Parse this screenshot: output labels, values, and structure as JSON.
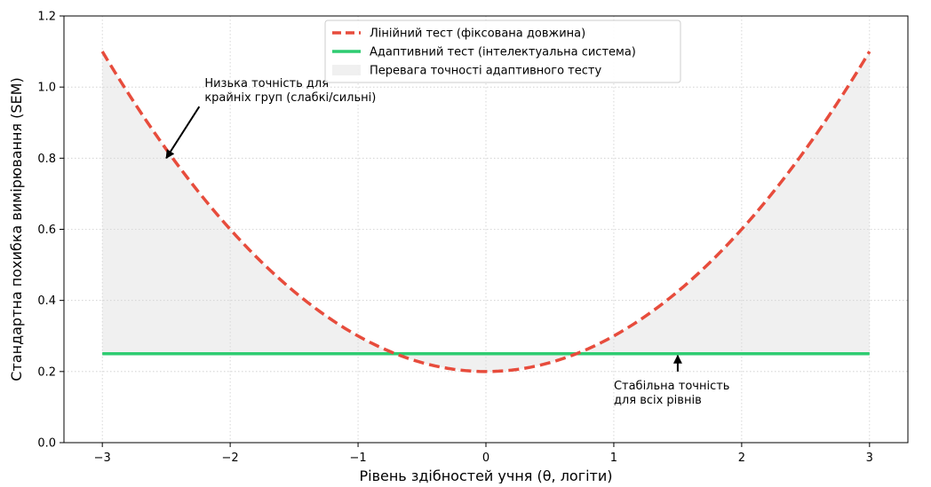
{
  "chart_data": {
    "type": "line",
    "title": "",
    "xlabel": "Рівень здібностей учня (θ, логіти)",
    "ylabel": "Стандартна похибка вимірювання (SEM)",
    "xlim": [
      -3.3,
      3.3
    ],
    "ylim": [
      0.0,
      1.2
    ],
    "xticks": [
      -3,
      -2,
      -1,
      0,
      1,
      2,
      3
    ],
    "xtick_labels": [
      "−3",
      "−2",
      "−1",
      "0",
      "1",
      "2",
      "3"
    ],
    "yticks": [
      0.0,
      0.2,
      0.4,
      0.6,
      0.8,
      1.0,
      1.2
    ],
    "ytick_labels": [
      "0.0",
      "0.2",
      "0.4",
      "0.6",
      "0.8",
      "1.0",
      "1.2"
    ],
    "grid": true,
    "legend_position": "top-center",
    "series": [
      {
        "name": "Лінійний тест (фіксована довжина)",
        "style": "dashed",
        "color": "#e74c3c",
        "x": [
          -3.0,
          -2.5,
          -2.0,
          -1.5,
          -1.0,
          -0.5,
          0.0,
          0.5,
          1.0,
          1.5,
          2.0,
          2.5,
          3.0
        ],
        "y": [
          1.1,
          0.825,
          0.6,
          0.425,
          0.3,
          0.225,
          0.2,
          0.225,
          0.3,
          0.425,
          0.6,
          0.825,
          1.1
        ]
      },
      {
        "name": "Адаптивний тест (інтелектуальна система)",
        "style": "solid",
        "color": "#2ecc71",
        "x": [
          -3.0,
          3.0
        ],
        "y": [
          0.25,
          0.25
        ]
      }
    ],
    "fill_between": {
      "name": "Перевага точності адаптивного тесту",
      "color": "#d9d9d9",
      "x_range": [
        -3.0,
        3.0
      ]
    },
    "annotations": [
      {
        "lines": [
          "Низька точність для",
          "крайніх груп (слабкі/сильні)"
        ],
        "text_at": [
          -2.2,
          1.0
        ],
        "arrow_to": [
          -2.5,
          0.8
        ]
      },
      {
        "lines": [
          "Стабільна точність",
          "для всіх рівнів"
        ],
        "text_at": [
          1.0,
          0.15
        ],
        "arrow_to": [
          1.5,
          0.25
        ]
      }
    ]
  }
}
